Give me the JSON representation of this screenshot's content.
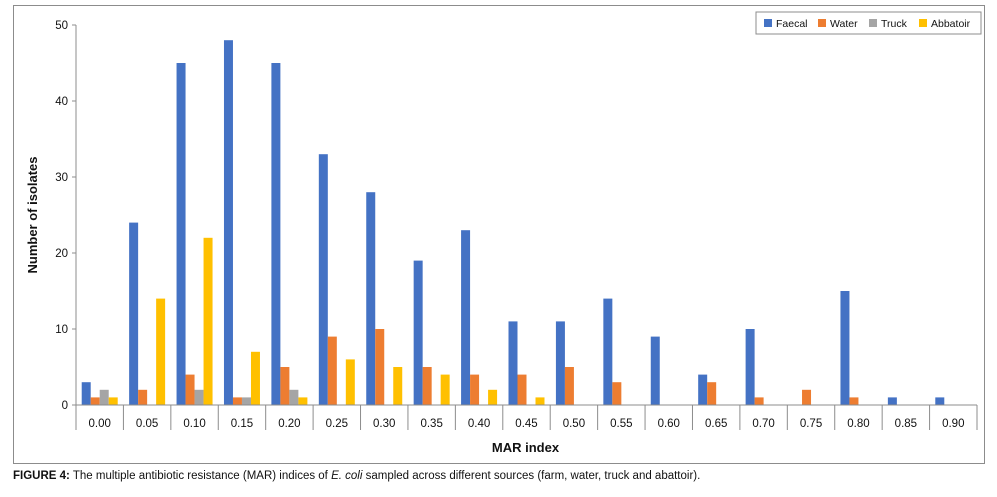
{
  "chart_data": {
    "type": "bar",
    "title": "",
    "xlabel": "MAR index",
    "ylabel": "Number of isolates",
    "ylim": [
      0,
      50
    ],
    "yticks": [
      0,
      10,
      20,
      30,
      40,
      50
    ],
    "grid": false,
    "legend_position": "top-right",
    "categories": [
      "0.00",
      "0.05",
      "0.10",
      "0.15",
      "0.20",
      "0.25",
      "0.30",
      "0.35",
      "0.40",
      "0.45",
      "0.50",
      "0.55",
      "0.60",
      "0.65",
      "0.70",
      "0.75",
      "0.80",
      "0.85",
      "0.90"
    ],
    "series": [
      {
        "name": "Faecal",
        "color": "#4472c4",
        "values": [
          3,
          24,
          45,
          48,
          45,
          33,
          28,
          19,
          23,
          11,
          11,
          14,
          9,
          4,
          10,
          0,
          15,
          1,
          1
        ]
      },
      {
        "name": "Water",
        "color": "#ed7d31",
        "values": [
          1,
          2,
          4,
          1,
          5,
          9,
          10,
          5,
          4,
          4,
          5,
          3,
          0,
          3,
          1,
          2,
          1,
          0,
          0
        ]
      },
      {
        "name": "Truck",
        "color": "#a5a5a5",
        "values": [
          2,
          0,
          2,
          1,
          2,
          0,
          0,
          0,
          0,
          0,
          0,
          0,
          0,
          0,
          0,
          0,
          0,
          0,
          0
        ]
      },
      {
        "name": "Abbatoir",
        "color": "#ffc000",
        "values": [
          1,
          14,
          22,
          7,
          1,
          6,
          5,
          4,
          2,
          1,
          0,
          0,
          0,
          0,
          0,
          0,
          0,
          0,
          0
        ]
      }
    ]
  },
  "caption": {
    "label": "FIGURE 4:",
    "text_before": " The multiple antibiotic resistance (MAR) indices of ",
    "italic": "E. coli",
    "text_after": " sampled across different sources (farm, water, truck and abattoir)."
  }
}
